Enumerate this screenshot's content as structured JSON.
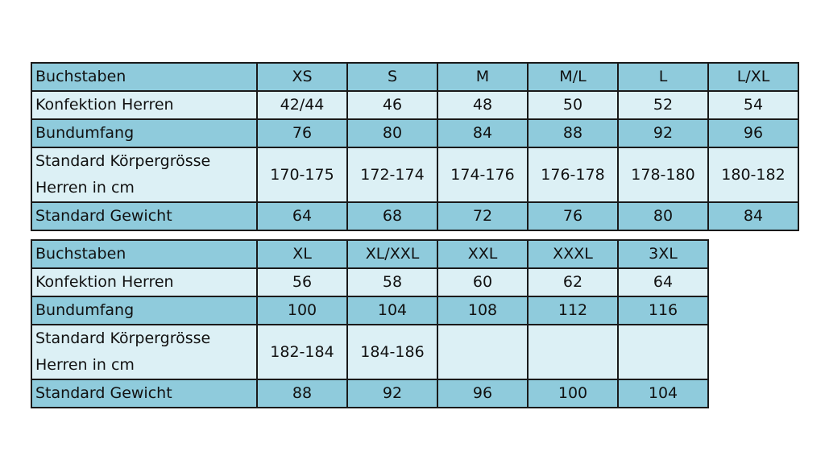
{
  "colors": {
    "dark_row": "#8fcbdc",
    "light_row": "#dcf0f5",
    "border": "#1a1a1a"
  },
  "tables": [
    {
      "rows": [
        {
          "label": "Buchstaben",
          "values": [
            "XS",
            "S",
            "M",
            "M/L",
            "L",
            "L/XL"
          ]
        },
        {
          "label": "Konfektion Herren",
          "values": [
            "42/44",
            "46",
            "48",
            "50",
            "52",
            "54"
          ]
        },
        {
          "label": "Bundumfang",
          "values": [
            "76",
            "80",
            "84",
            "88",
            "92",
            "96"
          ]
        },
        {
          "label": "Standard Körpergrösse Herren in cm",
          "values": [
            "170-175",
            "172-174",
            "174-176",
            "176-178",
            "178-180",
            "180-182"
          ]
        },
        {
          "label": "Standard Gewicht",
          "values": [
            "64",
            "68",
            "72",
            "76",
            "80",
            "84"
          ]
        }
      ]
    },
    {
      "rows": [
        {
          "label": "Buchstaben",
          "values": [
            "XL",
            "XL/XXL",
            "XXL",
            "XXXL",
            "3XL"
          ]
        },
        {
          "label": "Konfektion Herren",
          "values": [
            "56",
            "58",
            "60",
            "62",
            "64"
          ]
        },
        {
          "label": "Bundumfang",
          "values": [
            "100",
            "104",
            "108",
            "112",
            "116"
          ]
        },
        {
          "label": "Standard Körpergrösse Herren in cm",
          "values": [
            "182-184",
            "184-186",
            "",
            "",
            ""
          ]
        },
        {
          "label": "Standard Gewicht",
          "values": [
            "88",
            "92",
            "96",
            "100",
            "104"
          ]
        }
      ]
    }
  ]
}
